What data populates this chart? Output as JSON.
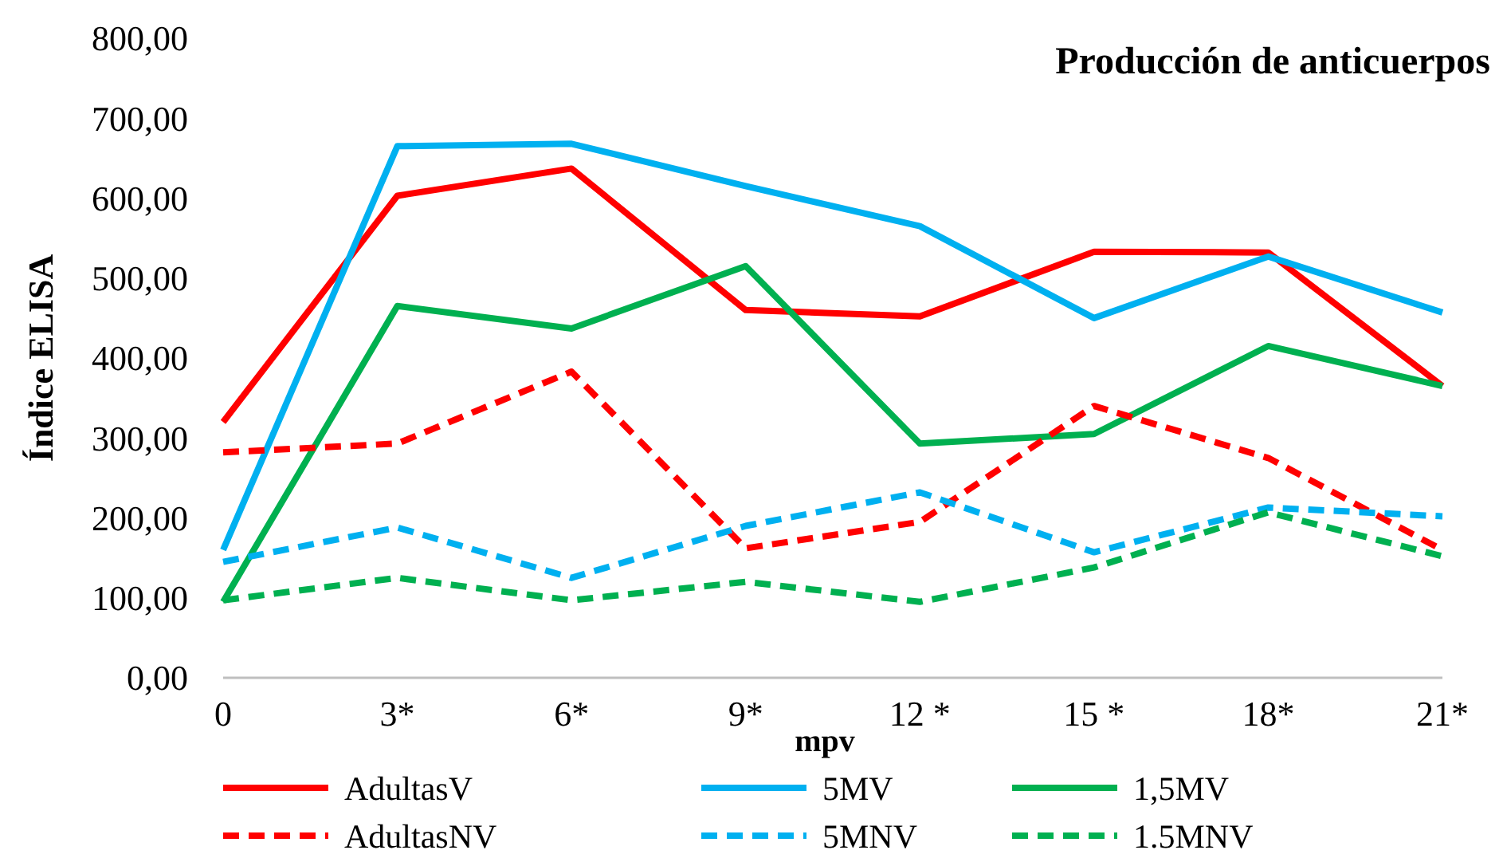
{
  "chart_data": {
    "type": "line",
    "title": "Producción de anticuerpos",
    "xlabel": "mpv",
    "ylabel": "Índice ELISA",
    "categories": [
      "0",
      "3*",
      "6*",
      "9*",
      "12 *",
      "15 *",
      "18*",
      "21*"
    ],
    "ylim": [
      0,
      800
    ],
    "yticks": [
      {
        "value": 0,
        "label": "0,00"
      },
      {
        "value": 100,
        "label": "100,00"
      },
      {
        "value": 200,
        "label": "200,00"
      },
      {
        "value": 300,
        "label": "300,00"
      },
      {
        "value": 400,
        "label": "400,00"
      },
      {
        "value": 500,
        "label": "500,00"
      },
      {
        "value": 600,
        "label": "600,00"
      },
      {
        "value": 700,
        "label": "700,00"
      },
      {
        "value": 800,
        "label": "800,00"
      }
    ],
    "grid": false,
    "legend": "bottom",
    "marker": "none",
    "series": [
      {
        "name": "AdultasV",
        "color": "#ff0000",
        "line_style": "solid",
        "values": [
          320,
          603,
          637,
          460,
          452,
          533,
          532,
          365
        ]
      },
      {
        "name": "5MV",
        "color": "#00b0f0",
        "line_style": "solid",
        "values": [
          160,
          665,
          668,
          615,
          565,
          450,
          527,
          457
        ]
      },
      {
        "name": "1,5MV",
        "color": "#00b050",
        "line_style": "solid",
        "values": [
          95,
          465,
          437,
          515,
          293,
          305,
          415,
          365
        ]
      },
      {
        "name": "AdultasNV",
        "color": "#ff0000",
        "line_style": "dashed",
        "values": [
          282,
          293,
          383,
          162,
          195,
          340,
          275,
          160
        ]
      },
      {
        "name": "5MNV",
        "color": "#00b0f0",
        "line_style": "dashed",
        "values": [
          145,
          188,
          125,
          190,
          232,
          157,
          213,
          202
        ]
      },
      {
        "name": "1.5MNV",
        "color": "#00b050",
        "line_style": "dashed",
        "values": [
          97,
          125,
          97,
          120,
          95,
          138,
          207,
          152
        ]
      }
    ]
  }
}
